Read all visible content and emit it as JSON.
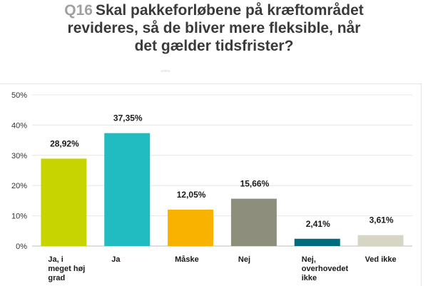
{
  "question_number": "Q16",
  "question_text": [
    "Skal pakkeforløbene på kræftområdet",
    "revideres, så de bliver mere fleksible, når",
    "det gælder tidsfrister?"
  ],
  "chart_data": {
    "type": "bar",
    "categories": [
      "Ja, i meget høj grad",
      "Ja",
      "Måske",
      "Nej",
      "Nej, overhovedet ikke",
      "Ved ikke"
    ],
    "category_lines": [
      [
        "Ja, i",
        "meget høj",
        "grad"
      ],
      [
        "Ja"
      ],
      [
        "Måske"
      ],
      [
        "Nej"
      ],
      [
        "Nej,",
        "overhovedet",
        "ikke"
      ],
      [
        "Ved ikke"
      ]
    ],
    "values": [
      28.92,
      37.35,
      12.05,
      15.66,
      2.41,
      3.61
    ],
    "data_labels": [
      "28,92%",
      "37,35%",
      "12,05%",
      "15,66%",
      "2,41%",
      "3,61%"
    ],
    "colors": [
      "#c8d400",
      "#20bcc2",
      "#f8b300",
      "#8d8e7c",
      "#006d7e",
      "#d7d5c3"
    ],
    "ylim": [
      0,
      50
    ],
    "yticks": [
      0,
      10,
      20,
      30,
      40,
      50
    ],
    "ytick_labels": [
      "0%",
      "10%",
      "20%",
      "30%",
      "40%",
      "50%"
    ],
    "grid": true
  }
}
